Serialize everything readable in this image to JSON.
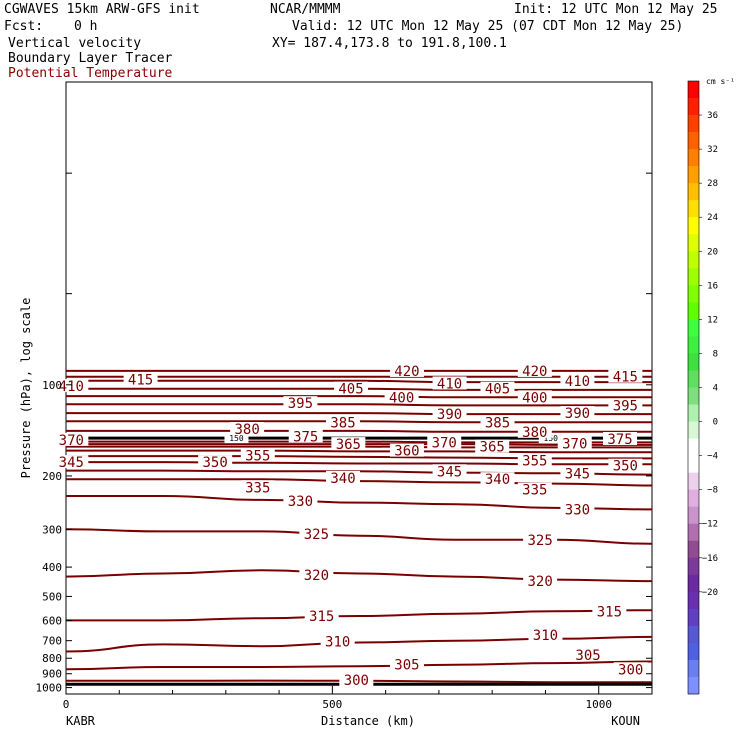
{
  "header": {
    "model": "CGWAVES 15km ARW-GFS init",
    "org": "NCAR/MMMM",
    "init": "Init: 12 UTC Mon 12 May 25",
    "fcst_label": "Fcst:",
    "fcst_value": "0 h",
    "valid": "Valid: 12 UTC Mon 12 May 25 (07 CDT Mon 12 May 25)",
    "field1": "Vertical velocity",
    "xy": "XY= 187.4,173.8 to 191.8,100.1",
    "field2": "Boundary Layer Tracer",
    "field3": "Potential Temperature"
  },
  "colors": {
    "contour": "#7a0000",
    "tracer": "#000000",
    "field3_text": "#8b0000"
  },
  "chart_data": {
    "type": "line",
    "description_scale": "log",
    "xlabel": "Distance (km)",
    "ylabel": "Pressure (hPa), log scale",
    "xlim": [
      0,
      1100
    ],
    "ylim": [
      1050,
      10
    ],
    "x_ticks": [
      {
        "value": 0,
        "label": "0"
      },
      {
        "value": 500,
        "label": "500"
      },
      {
        "value": 1000,
        "label": "1000"
      }
    ],
    "y_ticks": [
      {
        "value": 100,
        "label": "100"
      },
      {
        "value": 200,
        "label": "200"
      },
      {
        "value": 300,
        "label": "300"
      },
      {
        "value": 400,
        "label": "400"
      },
      {
        "value": 500,
        "label": "500"
      },
      {
        "value": 600,
        "label": "600"
      },
      {
        "value": 700,
        "label": "700"
      },
      {
        "value": 800,
        "label": "800"
      },
      {
        "value": 900,
        "label": "900"
      },
      {
        "value": 1000,
        "label": "1000"
      }
    ],
    "x_endpoints": {
      "left": "KABR",
      "right": "KOUN"
    },
    "contour_x": [
      0,
      183,
      367,
      550,
      733,
      917,
      1100
    ],
    "contours": [
      {
        "theta": 300,
        "p": [
          950,
          950,
          948,
          950,
          955,
          960,
          960
        ]
      },
      {
        "theta": 305,
        "p": [
          870,
          855,
          855,
          850,
          840,
          830,
          820
        ]
      },
      {
        "theta": 310,
        "p": [
          760,
          720,
          730,
          710,
          700,
          690,
          680
        ]
      },
      {
        "theta": 315,
        "p": [
          600,
          600,
          590,
          580,
          570,
          560,
          555
        ]
      },
      {
        "theta": 320,
        "p": [
          430,
          420,
          410,
          420,
          430,
          440,
          445
        ]
      },
      {
        "theta": 325,
        "p": [
          300,
          305,
          305,
          315,
          325,
          325,
          335
        ]
      },
      {
        "theta": 330,
        "p": [
          233,
          233,
          240,
          245,
          248,
          255,
          258
        ]
      },
      {
        "theta": 335,
        "p": [
          205,
          205,
          205,
          208,
          210,
          212,
          215
        ]
      },
      {
        "theta": 340,
        "p": [
          192,
          192,
          193,
          193,
          195,
          196,
          198
        ]
      },
      {
        "theta": 345,
        "p": [
          180,
          180,
          181,
          182,
          182,
          183,
          183
        ]
      },
      {
        "theta": 350,
        "p": [
          172,
          172,
          172,
          173,
          174,
          175,
          175
        ]
      },
      {
        "theta": 355,
        "p": [
          165,
          165,
          165,
          166,
          166,
          167,
          167
        ]
      },
      {
        "theta": 360,
        "p": [
          160,
          160,
          160,
          160,
          161,
          161,
          161
        ]
      },
      {
        "theta": 365,
        "p": [
          157,
          157,
          157,
          157,
          157,
          158,
          158
        ]
      },
      {
        "theta": 370,
        "p": [
          154,
          154,
          154,
          154,
          155,
          155,
          155
        ]
      },
      {
        "theta": 375,
        "p": [
          150,
          150,
          150,
          150,
          150,
          150,
          150
        ]
      },
      {
        "theta": 380,
        "p": [
          142,
          142,
          142,
          142,
          143,
          143,
          143
        ]
      },
      {
        "theta": 385,
        "p": [
          132,
          132,
          132,
          132,
          133,
          133,
          133
        ]
      },
      {
        "theta": 390,
        "p": [
          124,
          124,
          124,
          124,
          125,
          125,
          125
        ]
      },
      {
        "theta": 395,
        "p": [
          116,
          116,
          116,
          116,
          117,
          117,
          117
        ]
      },
      {
        "theta": 400,
        "p": [
          109,
          109,
          109,
          109,
          110,
          110,
          110
        ]
      },
      {
        "theta": 405,
        "p": [
          103,
          103,
          103,
          103,
          104,
          104,
          104
        ]
      },
      {
        "theta": 410,
        "p": [
          97,
          97,
          97,
          97,
          98,
          98,
          98
        ]
      },
      {
        "theta": 415,
        "p": [
          94,
          94,
          94,
          94,
          94,
          94,
          94
        ]
      },
      {
        "theta": 420,
        "p": [
          90,
          90,
          90,
          90,
          90,
          90,
          90
        ]
      }
    ],
    "contour_labels": [
      {
        "text": "300",
        "x": 545,
        "p": 945
      },
      {
        "text": "305",
        "x": 640,
        "p": 840
      },
      {
        "text": "305",
        "x": 980,
        "p": 780
      },
      {
        "text": "300",
        "x": 1060,
        "p": 870
      },
      {
        "text": "310",
        "x": 510,
        "p": 705
      },
      {
        "text": "310",
        "x": 900,
        "p": 670
      },
      {
        "text": "315",
        "x": 480,
        "p": 580
      },
      {
        "text": "315",
        "x": 1020,
        "p": 560
      },
      {
        "text": "320",
        "x": 470,
        "p": 425
      },
      {
        "text": "320",
        "x": 890,
        "p": 445
      },
      {
        "text": "325",
        "x": 470,
        "p": 311
      },
      {
        "text": "325",
        "x": 890,
        "p": 325
      },
      {
        "text": "330",
        "x": 440,
        "p": 242
      },
      {
        "text": "330",
        "x": 960,
        "p": 258
      },
      {
        "text": "335",
        "x": 360,
        "p": 218
      },
      {
        "text": "335",
        "x": 880,
        "p": 222
      },
      {
        "text": "340",
        "x": 520,
        "p": 203
      },
      {
        "text": "340",
        "x": 810,
        "p": 205
      },
      {
        "text": "345",
        "x": 10,
        "p": 180
      },
      {
        "text": "345",
        "x": 720,
        "p": 193
      },
      {
        "text": "345",
        "x": 960,
        "p": 196
      },
      {
        "text": "350",
        "x": 280,
        "p": 180
      },
      {
        "text": "350",
        "x": 1050,
        "p": 185
      },
      {
        "text": "355",
        "x": 360,
        "p": 171
      },
      {
        "text": "355",
        "x": 880,
        "p": 178
      },
      {
        "text": "360",
        "x": 640,
        "p": 165
      },
      {
        "text": "365",
        "x": 530,
        "p": 157
      },
      {
        "text": "365",
        "x": 800,
        "p": 160
      },
      {
        "text": "370",
        "x": 10,
        "p": 152
      },
      {
        "text": "370",
        "x": 710,
        "p": 155
      },
      {
        "text": "370",
        "x": 955,
        "p": 156
      },
      {
        "text": "375",
        "x": 450,
        "p": 148
      },
      {
        "text": "375",
        "x": 1040,
        "p": 151
      },
      {
        "text": "380",
        "x": 340,
        "p": 140
      },
      {
        "text": "380",
        "x": 880,
        "p": 143
      },
      {
        "text": "385",
        "x": 520,
        "p": 133
      },
      {
        "text": "385",
        "x": 810,
        "p": 133
      },
      {
        "text": "390",
        "x": 720,
        "p": 125
      },
      {
        "text": "390",
        "x": 960,
        "p": 124
      },
      {
        "text": "395",
        "x": 440,
        "p": 115
      },
      {
        "text": "395",
        "x": 1050,
        "p": 117
      },
      {
        "text": "400",
        "x": 630,
        "p": 110
      },
      {
        "text": "400",
        "x": 880,
        "p": 110
      },
      {
        "text": "405",
        "x": 535,
        "p": 103
      },
      {
        "text": "405",
        "x": 810,
        "p": 103
      },
      {
        "text": "410",
        "x": 10,
        "p": 101
      },
      {
        "text": "410",
        "x": 720,
        "p": 99
      },
      {
        "text": "410",
        "x": 960,
        "p": 97
      },
      {
        "text": "415",
        "x": 140,
        "p": 96
      },
      {
        "text": "415",
        "x": 1050,
        "p": 94
      },
      {
        "text": "420",
        "x": 640,
        "p": 90
      },
      {
        "text": "420",
        "x": 880,
        "p": 90
      }
    ],
    "tracer_lines": [
      {
        "label": "150",
        "p": 150,
        "label_x": [
          320,
          910
        ]
      },
      {
        "label": "",
        "p": 975,
        "label_x": []
      }
    ],
    "colorbar": {
      "units": "cm s⁻¹",
      "labels": [
        "36",
        "32",
        "28",
        "24",
        "20",
        "16",
        "12",
        "8",
        "4",
        "0",
        "−4",
        "−8",
        "−12",
        "−16",
        "−20"
      ],
      "colors": [
        "#ff0000",
        "#ff2000",
        "#ff4000",
        "#ff6000",
        "#ff7f00",
        "#ff9f00",
        "#ffbf00",
        "#ffdf00",
        "#ffff00",
        "#dfff00",
        "#bfff00",
        "#9fff00",
        "#7fff00",
        "#5fff00",
        "#3fff3f",
        "#3fef3f",
        "#3fdf3f",
        "#5fdf5f",
        "#7fdf7f",
        "#afefaf",
        "#d7f7d7",
        "#ffffff",
        "#ffffff",
        "#ecd0ec",
        "#dfb0df",
        "#c994c9",
        "#b070b0",
        "#904c90",
        "#7a3a9a",
        "#6a2aa0",
        "#6630b0",
        "#6040c0",
        "#5858d0",
        "#5060e0",
        "#6a7ef0",
        "#7f8fff"
      ]
    }
  }
}
